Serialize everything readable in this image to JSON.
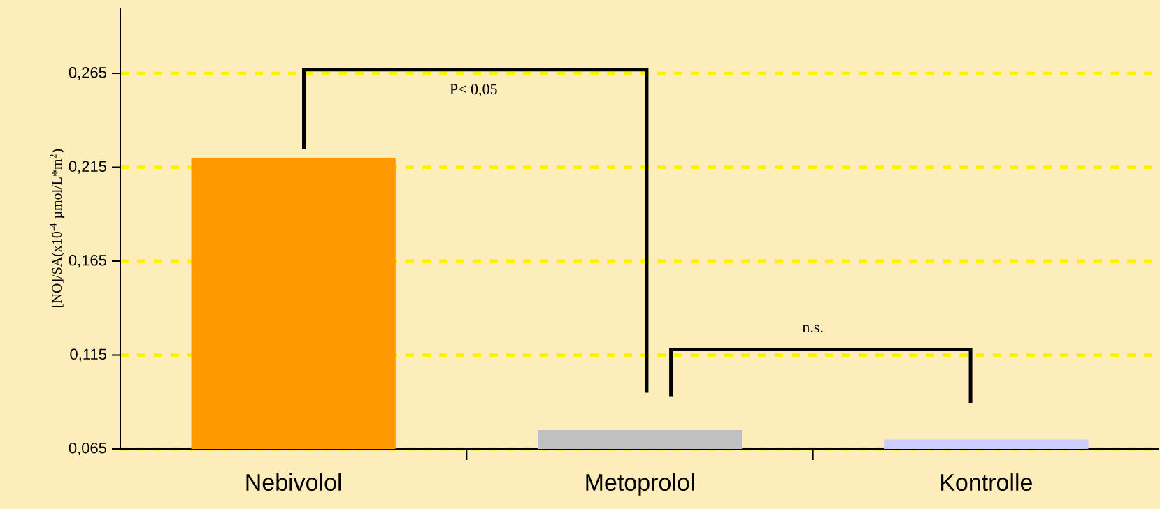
{
  "chart_data": {
    "type": "bar",
    "ylabel": "[NO]/SA(x10$^{-4}$ µmol/L*m$^{2}$)",
    "categories": [
      "Nebivolol",
      "Metoprolol",
      "Kontrolle"
    ],
    "values": [
      0.22,
      0.075,
      0.07
    ],
    "colors": [
      "#ff9900",
      "#c0c0c0",
      "#ccccff"
    ],
    "ylim": [
      0.065,
      0.3
    ],
    "yticks": [
      {
        "value": 0.065,
        "label": "0,065"
      },
      {
        "value": 0.115,
        "label": "0,115"
      },
      {
        "value": 0.165,
        "label": "0,165"
      },
      {
        "value": 0.215,
        "label": "0,215"
      },
      {
        "value": 0.265,
        "label": "0,265"
      }
    ],
    "grid": "y",
    "annotations": [
      "P< 0,05",
      "n.s."
    ]
  }
}
